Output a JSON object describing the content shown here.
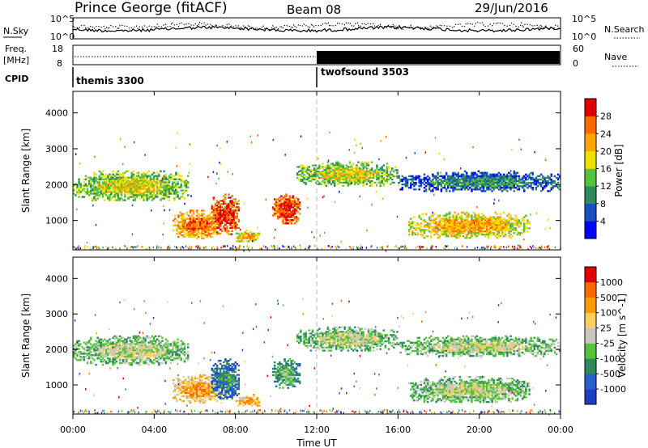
{
  "header": {
    "station": "Prince George (fitACF)",
    "beam": "Beam 08",
    "date": "29/Jun/2016"
  },
  "aux_panels": {
    "nsky_label": "N.Sky",
    "nsearch_label": "N.Search",
    "noise_ticks": [
      "10^5",
      "10^0"
    ],
    "freq_label": "Freq.",
    "freq_unit": "[MHz]",
    "freq_ticks": [
      "18",
      "8"
    ],
    "nave_label": "Nave",
    "nave_ticks": [
      "60",
      "0"
    ],
    "cpid_label": "CPID",
    "cpid_modes": [
      {
        "name": "themis 3300",
        "start_hour": 0
      },
      {
        "name": "twofsound 3503",
        "start_hour": 12
      }
    ]
  },
  "x_axis": {
    "title": "Time UT",
    "tick_labels": [
      "00:00",
      "04:00",
      "08:00",
      "12:00",
      "16:00",
      "20:00",
      "00:00"
    ],
    "range_hours": [
      0,
      24
    ]
  },
  "chart_data": [
    {
      "type": "heatmap",
      "ylabel": "Slant Range [km]",
      "y_ticks": [
        1000,
        2000,
        3000,
        4000
      ],
      "ylim": [
        180,
        4600
      ],
      "xlim": [
        0,
        24
      ],
      "colorbar": {
        "title": "Power [dB]",
        "ticks": [
          "4",
          "8",
          "12",
          "16",
          "20",
          "24",
          "28"
        ],
        "colors": [
          "#0000ff",
          "#1a4fc4",
          "#2f8b5a",
          "#55c43c",
          "#f0e000",
          "#ffa600",
          "#ff6a00",
          "#e10000"
        ]
      },
      "regions": [
        {
          "t0": 0.0,
          "t1": 5.7,
          "r0": 1550,
          "r1": 2400,
          "level": 4
        },
        {
          "t0": 4.9,
          "t1": 7.3,
          "r0": 480,
          "r1": 1300,
          "level": 6
        },
        {
          "t0": 6.8,
          "t1": 8.2,
          "r0": 600,
          "r1": 1750,
          "level": 7
        },
        {
          "t0": 8.0,
          "t1": 9.2,
          "r0": 400,
          "r1": 750,
          "level": 5
        },
        {
          "t0": 9.8,
          "t1": 11.2,
          "r0": 900,
          "r1": 1750,
          "level": 7
        },
        {
          "t0": 11.0,
          "t1": 16.0,
          "r0": 1950,
          "r1": 2650,
          "level": 4
        },
        {
          "t0": 16.0,
          "t1": 24.0,
          "r0": 1800,
          "r1": 2400,
          "level": 2
        },
        {
          "t0": 16.5,
          "t1": 22.5,
          "r0": 500,
          "r1": 1250,
          "level": 5
        }
      ]
    },
    {
      "type": "heatmap",
      "ylabel": "Slant Range [km]",
      "y_ticks": [
        1000,
        2000,
        3000,
        4000
      ],
      "ylim": [
        180,
        4600
      ],
      "xlim": [
        0,
        24
      ],
      "colorbar": {
        "title": "Velocity [m s^-1]",
        "ticks": [
          "1000",
          "500",
          "100",
          "25",
          "-25",
          "-100",
          "-500",
          "-1000"
        ],
        "colors": [
          "#1b3fbf",
          "#2b5fd0",
          "#2f8b5a",
          "#55c43c",
          "#c8c8c0",
          "#ffd060",
          "#ff9a00",
          "#ff6a00",
          "#e10000"
        ]
      },
      "regions": [
        {
          "t0": 0.0,
          "t1": 5.7,
          "r0": 1550,
          "r1": 2400,
          "level": 4
        },
        {
          "t0": 4.9,
          "t1": 7.3,
          "r0": 480,
          "r1": 1300,
          "level": 6
        },
        {
          "t0": 6.8,
          "t1": 8.2,
          "r0": 600,
          "r1": 1750,
          "level": 2
        },
        {
          "t0": 8.0,
          "t1": 9.2,
          "r0": 400,
          "r1": 750,
          "level": 6
        },
        {
          "t0": 9.8,
          "t1": 11.2,
          "r0": 900,
          "r1": 1750,
          "level": 3
        },
        {
          "t0": 11.0,
          "t1": 16.0,
          "r0": 1950,
          "r1": 2650,
          "level": 4
        },
        {
          "t0": 16.0,
          "t1": 24.0,
          "r0": 1800,
          "r1": 2400,
          "level": 4
        },
        {
          "t0": 16.5,
          "t1": 22.5,
          "r0": 500,
          "r1": 1250,
          "level": 4
        }
      ]
    }
  ]
}
